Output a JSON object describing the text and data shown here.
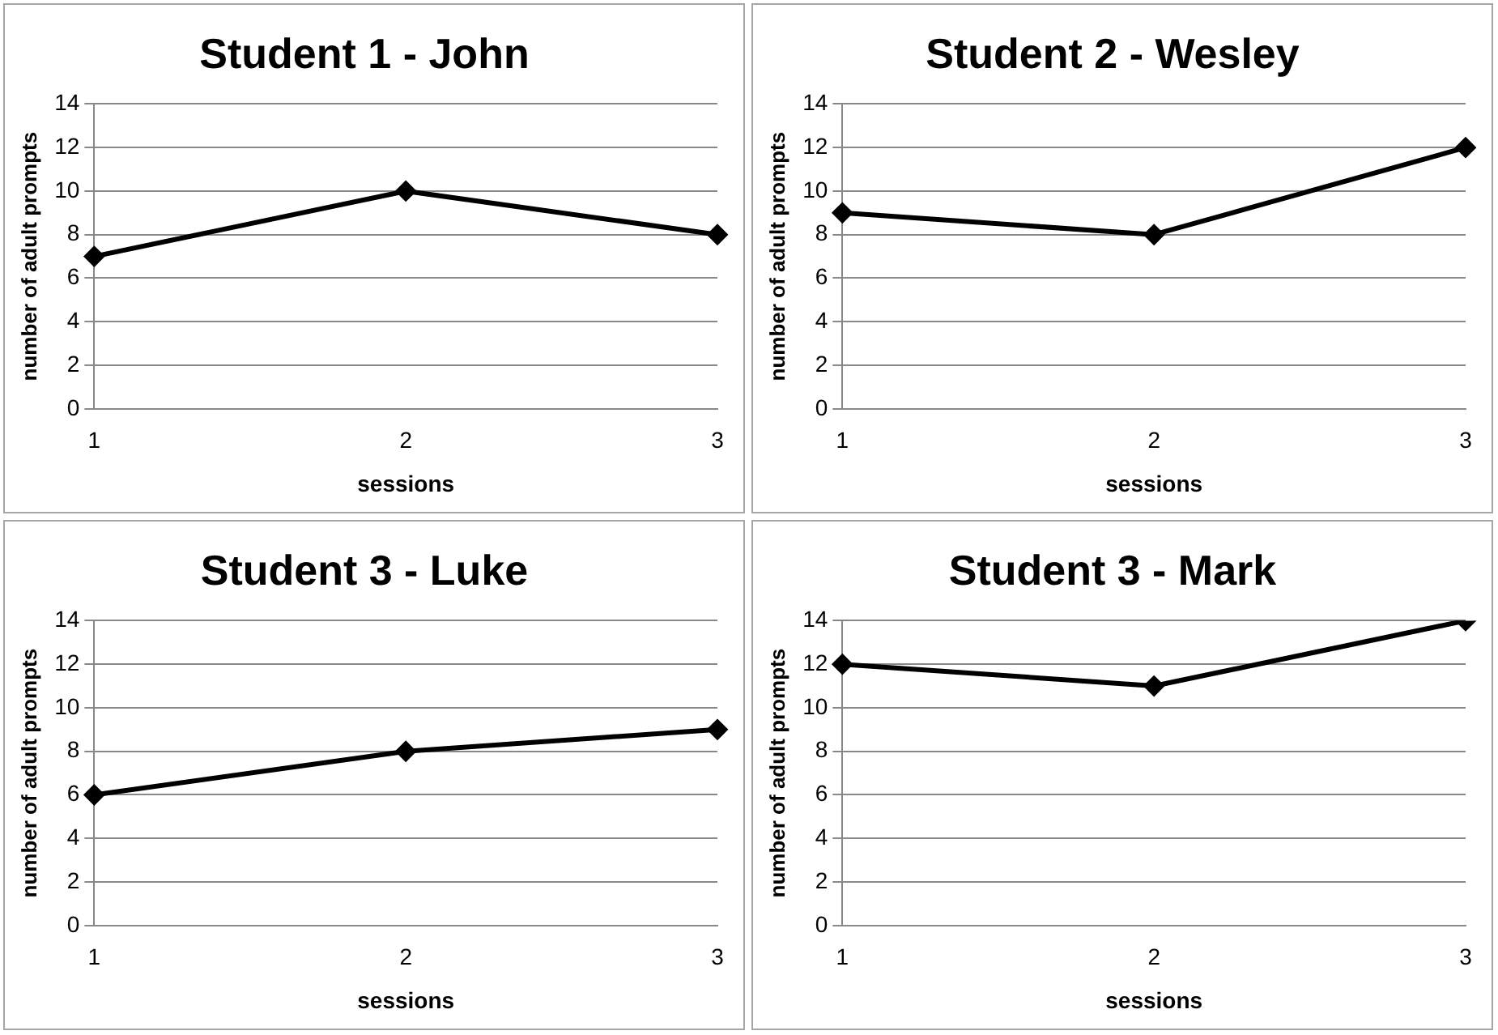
{
  "chart_data": [
    {
      "type": "line",
      "title": "Student 1 - John",
      "xlabel": "sessions",
      "ylabel": "number of adult prompts",
      "categories": [
        "1",
        "2",
        "3"
      ],
      "values": [
        7,
        10,
        8
      ],
      "color": "#000000",
      "ylim": [
        0,
        14
      ],
      "yticks": [
        0,
        2,
        4,
        6,
        8,
        10,
        12,
        14
      ],
      "grid": "y",
      "marker": "diamond",
      "line_style": "solid"
    },
    {
      "type": "line",
      "title": "Student 2 - Wesley",
      "xlabel": "sessions",
      "ylabel": "number of adult prompts",
      "categories": [
        "1",
        "2",
        "3"
      ],
      "values": [
        9,
        8,
        12
      ],
      "color": "#000000",
      "ylim": [
        0,
        14
      ],
      "yticks": [
        0,
        2,
        4,
        6,
        8,
        10,
        12,
        14
      ],
      "grid": "y",
      "marker": "diamond",
      "line_style": "solid"
    },
    {
      "type": "line",
      "title": "Student 3 - Luke",
      "xlabel": "sessions",
      "ylabel": "number of adult prompts",
      "categories": [
        "1",
        "2",
        "3"
      ],
      "values": [
        6,
        8,
        9
      ],
      "color": "#000000",
      "ylim": [
        0,
        14
      ],
      "yticks": [
        0,
        2,
        4,
        6,
        8,
        10,
        12,
        14
      ],
      "grid": "y",
      "marker": "diamond",
      "line_style": "solid"
    },
    {
      "type": "line",
      "title": "Student 3 - Mark",
      "xlabel": "sessions",
      "ylabel": "number of adult prompts",
      "categories": [
        "1",
        "2",
        "3"
      ],
      "values": [
        12,
        11,
        14
      ],
      "color": "#000000",
      "ylim": [
        0,
        14
      ],
      "yticks": [
        0,
        2,
        4,
        6,
        8,
        10,
        12,
        14
      ],
      "grid": "y",
      "marker": "diamond",
      "line_style": "solid"
    }
  ]
}
